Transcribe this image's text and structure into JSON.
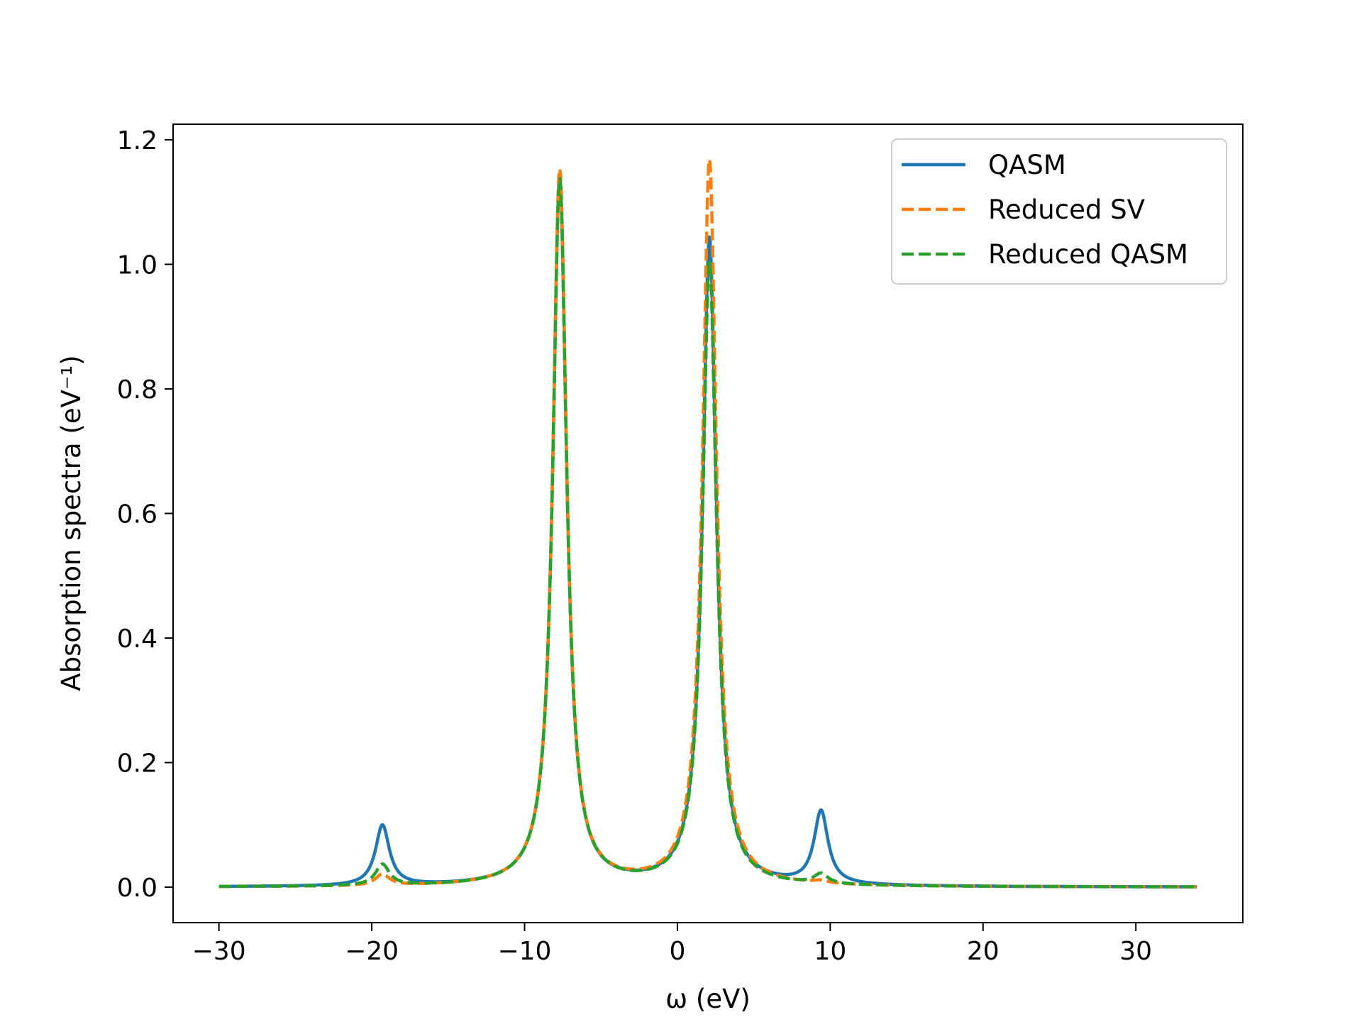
{
  "chart_data": {
    "type": "line",
    "xlabel": "ω (eV)",
    "ylabel": "Absorption spectra (eV⁻¹)",
    "xlim": [
      -33,
      37
    ],
    "ylim": [
      -0.057,
      1.225
    ],
    "xticks": [
      -30,
      -20,
      -10,
      0,
      10,
      20,
      30
    ],
    "xtick_labels": [
      "−30",
      "−20",
      "−10",
      "0",
      "10",
      "20",
      "30"
    ],
    "yticks": [
      0.0,
      0.2,
      0.4,
      0.6,
      0.8,
      1.0,
      1.2
    ],
    "ytick_labels": [
      "0.0",
      "0.2",
      "0.4",
      "0.6",
      "0.8",
      "1.0",
      "1.2"
    ],
    "grid": false,
    "legend_position": "top-right",
    "x_range": [
      -30,
      34
    ],
    "series": [
      {
        "name": "QASM",
        "color": "#1f77b4",
        "style": "solid",
        "peaks": [
          {
            "center": -19.3,
            "height": 0.097
          },
          {
            "center": -7.7,
            "height": 1.135
          },
          {
            "center": 2.1,
            "height": 1.04
          },
          {
            "center": 9.4,
            "height": 0.117
          }
        ]
      },
      {
        "name": "Reduced SV",
        "color": "#ff7f0e",
        "style": "dashed",
        "peaks": [
          {
            "center": -19.3,
            "height": 0.018
          },
          {
            "center": -7.7,
            "height": 1.15
          },
          {
            "center": 2.1,
            "height": 1.165
          },
          {
            "center": 9.4,
            "height": 0.004
          }
        ]
      },
      {
        "name": "Reduced QASM",
        "color": "#2ca02c",
        "style": "dashed",
        "peaks": [
          {
            "center": -19.3,
            "height": 0.034
          },
          {
            "center": -7.7,
            "height": 1.135
          },
          {
            "center": 2.1,
            "height": 1.0
          },
          {
            "center": 9.4,
            "height": 0.016
          }
        ]
      }
    ]
  }
}
